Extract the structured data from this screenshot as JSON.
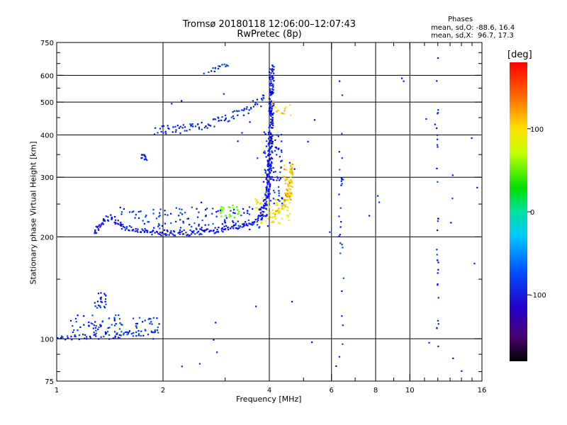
{
  "header": {
    "title_line1": "Tromsø 20180118 12:06:00–12:07:43",
    "title_line2": "RwPretec (8p)"
  },
  "phase_info": {
    "title": "Phases",
    "line_o": "mean, sd,O: -88.6, 16.4",
    "line_x": "mean, sd,X:  96.7, 17.3"
  },
  "chart_data": {
    "type": "scatter",
    "xlabel": "Frequency [MHz]",
    "ylabel": "Stationary phase Virtual Height [km]",
    "x_scale": "log",
    "y_scale": "log",
    "xlim": [
      1,
      16
    ],
    "ylim": [
      75,
      750
    ],
    "x_ticks": [
      {
        "value": 1,
        "label": "1"
      },
      {
        "value": 2,
        "label": "2"
      },
      {
        "value": 4,
        "label": "4"
      },
      {
        "value": 6,
        "label": "6"
      },
      {
        "value": 8,
        "label": "8"
      },
      {
        "value": 10,
        "label": "10"
      },
      {
        "value": 16,
        "label": "16"
      }
    ],
    "x_minor_ticks": [
      3,
      5,
      7,
      9,
      11,
      12,
      13,
      14,
      15
    ],
    "x_gridlines": [
      2,
      4,
      6,
      8,
      10
    ],
    "y_ticks": [
      {
        "value": 75,
        "label": "75"
      },
      {
        "value": 100,
        "label": "100"
      },
      {
        "value": 200,
        "label": "200"
      },
      {
        "value": 300,
        "label": "300"
      },
      {
        "value": 400,
        "label": "400"
      },
      {
        "value": 500,
        "label": "500"
      },
      {
        "value": 600,
        "label": "600"
      },
      {
        "value": 750,
        "label": "750"
      }
    ],
    "y_minor_ticks": [
      80,
      90,
      150,
      250,
      350,
      450,
      550,
      650,
      700
    ],
    "y_gridlines": [
      100,
      200,
      300,
      400,
      500,
      600
    ],
    "colorbar": {
      "label": "[deg]",
      "range": [
        -180,
        180
      ],
      "ticks": [
        {
          "value": 100,
          "label": "100"
        },
        {
          "value": 0,
          "label": "0"
        },
        {
          "value": -100,
          "label": "-100"
        }
      ]
    },
    "traces": [
      {
        "type": "curve",
        "phase": -95,
        "spread": 4,
        "step": 0.012,
        "points": [
          [
            1.0,
            101
          ],
          [
            1.15,
            101
          ],
          [
            1.3,
            101.5
          ],
          [
            1.45,
            102
          ],
          [
            1.6,
            103
          ],
          [
            1.75,
            104
          ],
          [
            1.95,
            106
          ]
        ]
      },
      {
        "type": "cluster",
        "phase": -90,
        "n": 90,
        "x": [
          1.08,
          1.95
        ],
        "y": [
          100,
          118
        ]
      },
      {
        "type": "cluster",
        "phase": -95,
        "n": 22,
        "x": [
          1.28,
          1.38
        ],
        "y": [
          123,
          137
        ]
      },
      {
        "type": "curve",
        "phase": -100,
        "spread": 4,
        "step": 0.006,
        "points": [
          [
            1.28,
            204
          ],
          [
            1.32,
            215
          ],
          [
            1.36,
            225
          ],
          [
            1.42,
            228
          ],
          [
            1.48,
            222
          ],
          [
            1.55,
            214
          ],
          [
            1.7,
            209
          ],
          [
            1.9,
            206
          ],
          [
            2.1,
            205
          ],
          [
            2.4,
            206
          ],
          [
            2.8,
            209
          ],
          [
            3.2,
            214
          ],
          [
            3.6,
            222
          ],
          [
            3.8,
            228
          ],
          [
            3.95,
            235
          ]
        ]
      },
      {
        "type": "cluster",
        "phase": -90,
        "n": 120,
        "x": [
          1.5,
          3.9
        ],
        "y": [
          210,
          245
        ]
      },
      {
        "type": "cluster",
        "phase": 70,
        "n": 25,
        "x": [
          2.9,
          3.3
        ],
        "y": [
          228,
          252
        ]
      },
      {
        "type": "cluster",
        "phase": 110,
        "n": 70,
        "x": [
          3.65,
          4.6
        ],
        "y": [
          218,
          262
        ]
      },
      {
        "type": "curve",
        "phase": 120,
        "spread": 5,
        "step": 0.006,
        "points": [
          [
            4.05,
            232
          ],
          [
            4.3,
            240
          ],
          [
            4.45,
            255
          ],
          [
            4.55,
            275
          ],
          [
            4.6,
            300
          ],
          [
            4.62,
            325
          ]
        ]
      },
      {
        "type": "cluster",
        "phase": 130,
        "n": 40,
        "x": [
          4.4,
          4.65
        ],
        "y": [
          255,
          330
        ]
      },
      {
        "type": "curve",
        "phase": -100,
        "spread": 6,
        "step": 0.004,
        "points": [
          [
            3.75,
            230
          ],
          [
            3.9,
            250
          ],
          [
            3.98,
            290
          ],
          [
            4.02,
            340
          ],
          [
            4.04,
            400
          ],
          [
            4.05,
            470
          ],
          [
            4.06,
            560
          ],
          [
            4.06,
            640
          ]
        ]
      },
      {
        "type": "cluster",
        "phase": -95,
        "n": 80,
        "x": [
          3.85,
          4.35
        ],
        "y": [
          250,
          410
        ]
      },
      {
        "type": "curve",
        "phase": -95,
        "spread": 6,
        "step": 0.008,
        "points": [
          [
            1.9,
            412
          ],
          [
            2.2,
            415
          ],
          [
            2.6,
            425
          ],
          [
            3.0,
            445
          ],
          [
            3.4,
            470
          ],
          [
            3.75,
            500
          ],
          [
            3.9,
            520
          ]
        ]
      },
      {
        "type": "cluster",
        "phase": 120,
        "n": 15,
        "x": [
          4.05,
          4.6
        ],
        "y": [
          455,
          505
        ]
      },
      {
        "type": "curve",
        "phase": -95,
        "spread": 3,
        "step": 0.01,
        "points": [
          [
            2.7,
            620
          ],
          [
            3.0,
            640
          ],
          [
            3.1,
            650
          ]
        ]
      },
      {
        "type": "cluster",
        "phase": -100,
        "n": 14,
        "x": [
          1.73,
          1.8
        ],
        "y": [
          335,
          350
        ]
      },
      {
        "type": "cluster",
        "phase": -90,
        "n": 30,
        "x": [
          6.3,
          6.5
        ],
        "y": [
          85,
          600
        ]
      },
      {
        "type": "cluster",
        "phase": -95,
        "n": 30,
        "x": [
          11.9,
          12.05
        ],
        "y": [
          78,
          610
        ]
      },
      {
        "type": "cluster",
        "phase": -100,
        "n": 45,
        "x": [
          2.0,
          15.9
        ],
        "y": [
          80,
          680
        ]
      }
    ]
  }
}
